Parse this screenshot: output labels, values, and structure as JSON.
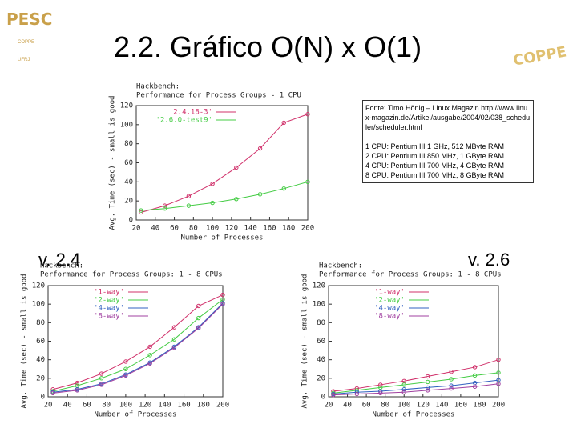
{
  "slide": {
    "title": "2.2. Gráfico O(N) x O(1)",
    "logo": "PESC",
    "logo_sub": [
      "COPPE",
      "UFRJ"
    ],
    "logo_right": "COPPE",
    "source": "Fonte: Timo Hönig – Linux Magazin http://www.linux-magazin.de/Artikel/ausgabe/2004/02/038_scheduler/scheduler.html",
    "cpus": [
      "1 CPU: Pentium III 1 GHz, 512 MByte RAM",
      "2 CPU: Pentium III 850 MHz, 1 GByte RAM",
      "4 CPU: Pentium III 700 MHz, 4 GByte RAM",
      "8 CPU: Pentium III 700 MHz, 8 GByte RAM"
    ],
    "label_left": "v. 2.4",
    "label_right": "v. 2.6"
  },
  "chart_data": [
    {
      "type": "line",
      "title": "Hackbench:",
      "subtitle": "Performance for Process Groups - 1 CPU",
      "x_label": "Number of Processes",
      "y_label": "Avg. Time (sec) - small is good",
      "x": [
        25,
        50,
        75,
        100,
        125,
        150,
        175,
        200
      ],
      "series": [
        {
          "name": "'2.4.18-3'",
          "color": "#d0306a",
          "values": [
            8,
            15,
            25,
            38,
            55,
            75,
            102,
            111
          ]
        },
        {
          "name": "'2.6.0-test9'",
          "color": "#44cc44",
          "values": [
            10,
            12,
            15,
            18,
            22,
            27,
            33,
            40
          ]
        }
      ],
      "xlim": [
        20,
        200
      ],
      "xticks": [
        20,
        40,
        60,
        80,
        100,
        120,
        140,
        160,
        180,
        200
      ],
      "ylim": [
        0,
        120
      ],
      "yticks": [
        0,
        20,
        40,
        60,
        80,
        100,
        120
      ],
      "legend": "upper left"
    },
    {
      "type": "line",
      "title": "Hackbench:",
      "subtitle": "Performance for Process Groups: 1 - 8 CPUs",
      "x_label": "Number of Processes",
      "y_label": "Avg. Time (sec) - small is good",
      "x": [
        25,
        50,
        75,
        100,
        125,
        150,
        175,
        200
      ],
      "series": [
        {
          "name": "'1-way'",
          "color": "#d0306a",
          "values": [
            8,
            15,
            25,
            38,
            54,
            75,
            98,
            110
          ]
        },
        {
          "name": "'2-way'",
          "color": "#44cc44",
          "values": [
            6,
            12,
            20,
            30,
            45,
            62,
            85,
            105
          ]
        },
        {
          "name": "'4-way'",
          "color": "#3060c0",
          "values": [
            5,
            8,
            14,
            24,
            37,
            54,
            75,
            101
          ]
        },
        {
          "name": "'8-way'",
          "color": "#a040a0",
          "values": [
            4,
            7,
            13,
            23,
            36,
            53,
            74,
            100
          ]
        }
      ],
      "xlim": [
        20,
        200
      ],
      "xticks": [
        20,
        40,
        60,
        80,
        100,
        120,
        140,
        160,
        180,
        200
      ],
      "ylim": [
        0,
        120
      ],
      "yticks": [
        0,
        20,
        40,
        60,
        80,
        100,
        120
      ],
      "legend": "upper left"
    },
    {
      "type": "line",
      "title": "Hackbench:",
      "subtitle": "Performance for Process Groups: 1 - 8 CPUs",
      "x_label": "Number of Processes",
      "y_label": "Avg. Time (sec) - small is good",
      "x": [
        25,
        50,
        75,
        100,
        125,
        150,
        175,
        200
      ],
      "series": [
        {
          "name": "'1-way'",
          "color": "#d0306a",
          "values": [
            6,
            9,
            13,
            17,
            22,
            27,
            32,
            40
          ]
        },
        {
          "name": "'2-way'",
          "color": "#44cc44",
          "values": [
            4,
            7,
            10,
            13,
            16,
            19,
            23,
            26
          ]
        },
        {
          "name": "'4-way'",
          "color": "#3060c0",
          "values": [
            3,
            5,
            6,
            8,
            10,
            12,
            15,
            18
          ]
        },
        {
          "name": "'8-way'",
          "color": "#a040a0",
          "values": [
            2,
            3,
            4,
            5,
            7,
            9,
            11,
            14
          ]
        }
      ],
      "xlim": [
        20,
        200
      ],
      "xticks": [
        20,
        40,
        60,
        80,
        100,
        120,
        140,
        160,
        180,
        200
      ],
      "ylim": [
        0,
        120
      ],
      "yticks": [
        0,
        20,
        40,
        60,
        80,
        100,
        120
      ],
      "legend": "upper left"
    }
  ]
}
